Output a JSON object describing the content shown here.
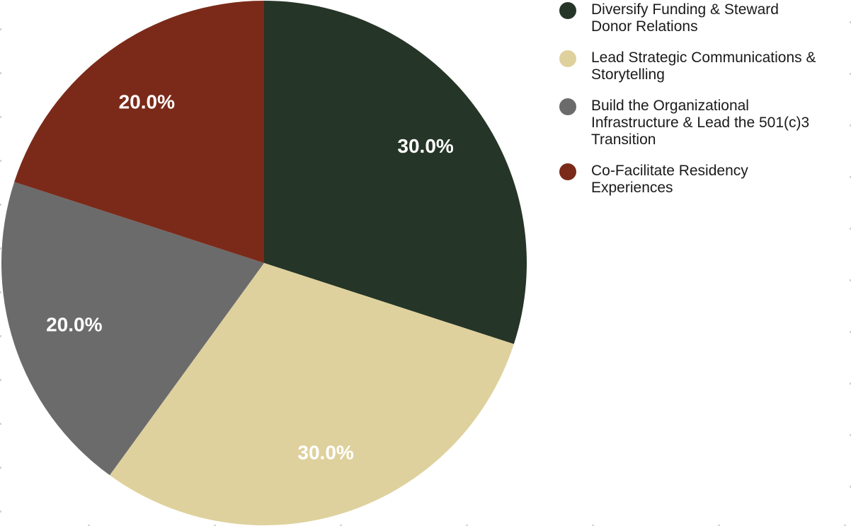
{
  "page": {
    "background": "#ffffff"
  },
  "chart_data": {
    "type": "pie",
    "title": "",
    "categories": [
      "Diversify Funding & Steward Donor Relations",
      "Lead Strategic Communications & Storytelling",
      "Build the Organizational Infrastructure & Lead the 501(c)3 Transition",
      "Co-Facilitate Residency Experiences"
    ],
    "values": [
      30.0,
      30.0,
      20.0,
      20.0
    ],
    "value_labels": [
      "30.0%",
      "30.0%",
      "20.0%",
      "20.0%"
    ],
    "colors": [
      "#253527",
      "#dfd19d",
      "#6b6b6b",
      "#7b2a19"
    ],
    "start_angle": "top",
    "direction": "clockwise",
    "pct_label_color": "#ffffff",
    "pct_distance": 0.76,
    "legend": {
      "position": "upper-right",
      "text_color": "#1a1a1a",
      "entries": [
        {
          "lines": [
            "Diversify Funding & Steward",
            "Donor Relations"
          ],
          "color": "#253527"
        },
        {
          "lines": [
            "Lead Strategic Communications &",
            "Storytelling"
          ],
          "color": "#dfd19d"
        },
        {
          "lines": [
            "Build the Organizational",
            "Infrastructure & Lead the 501(c)3",
            "Transition"
          ],
          "color": "#6b6b6b"
        },
        {
          "lines": [
            "Co-Facilitate Residency",
            "Experiences"
          ],
          "color": "#7b2a19"
        }
      ]
    }
  }
}
